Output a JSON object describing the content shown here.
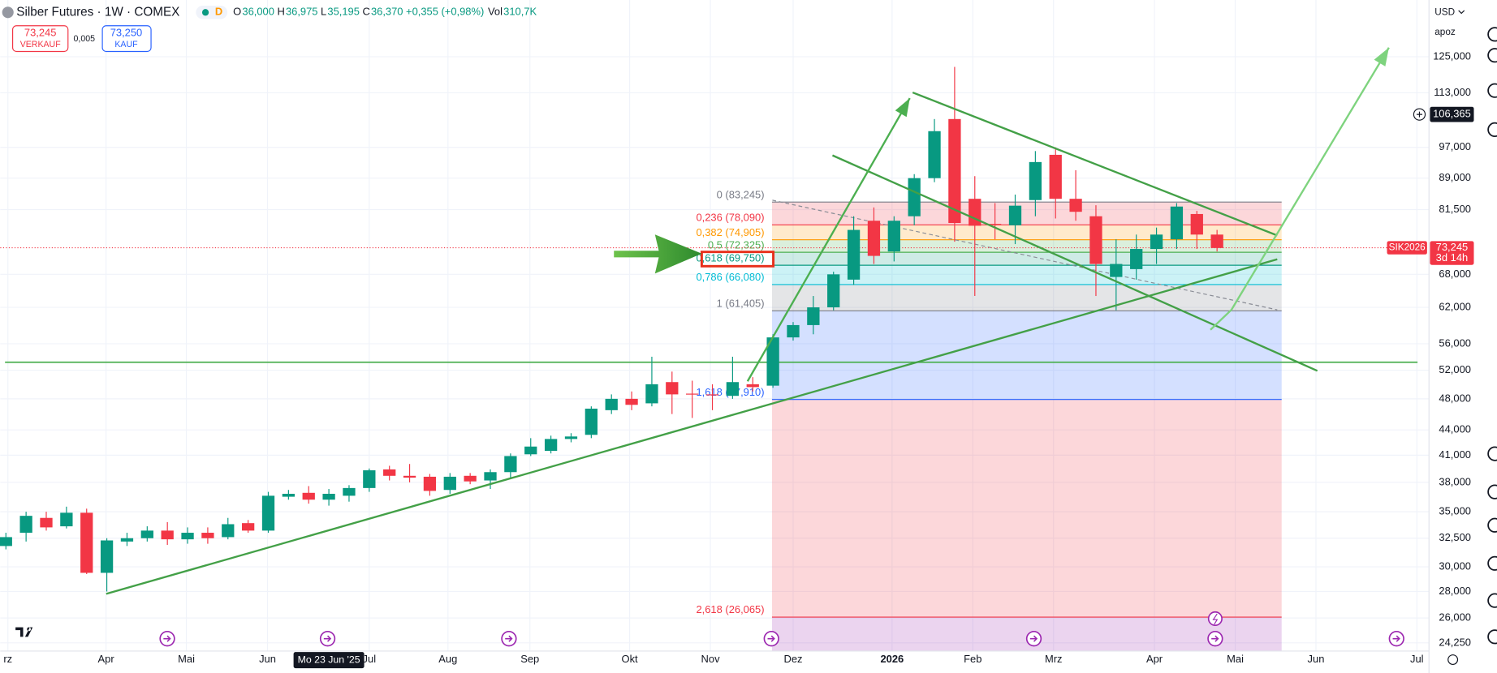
{
  "header": {
    "symbol": "Silber Futures · 1W · COMEX",
    "session": "D",
    "o_label": "O",
    "o": "36,000",
    "h_label": "H",
    "h": "36,975",
    "l_label": "L",
    "l": "35,195",
    "c_label": "C",
    "c": "36,370",
    "change": "+0,355 (+0,98%)",
    "vol_label": "Vol",
    "vol": "310,7K",
    "sell": "73,245",
    "sell_label": "VERKAUF",
    "spread": "0,005",
    "buy": "73,250",
    "buy_label": "KAUF",
    "currency": "USD",
    "scale_mode": "apoz"
  },
  "chart_data": {
    "type": "candlestick",
    "log_scale": true,
    "grid": true,
    "up_color": "#089981",
    "down_color": "#f23645",
    "open": [
      31.8,
      33.0,
      34.4,
      33.6,
      34.9,
      29.5,
      32.2,
      32.5,
      33.2,
      32.4,
      33.0,
      32.6,
      33.9,
      33.2,
      36.5,
      36.9,
      36.2,
      36.6,
      37.4,
      39.4,
      38.7,
      38.6,
      37.2,
      38.7,
      38.2,
      39.1,
      41.1,
      41.5,
      42.9,
      43.4,
      46.5,
      48.0,
      47.4,
      50.3,
      48.7,
      48.6,
      48.4,
      50.0,
      49.8,
      57.0,
      59.0,
      62.0,
      67.0,
      79.0,
      72.5,
      80.0,
      89.0,
      105.0,
      84.0,
      78.3,
      78.0,
      83.7,
      95.0,
      84.0,
      80.0,
      67.5,
      69.0,
      73.0,
      75.0,
      80.5,
      76.0
    ],
    "high": [
      33.0,
      35.0,
      35.0,
      35.5,
      35.3,
      32.5,
      33.0,
      33.6,
      34.0,
      33.5,
      33.5,
      34.4,
      34.2,
      37.0,
      37.2,
      37.6,
      37.3,
      37.7,
      39.5,
      39.8,
      40.0,
      38.9,
      39.0,
      39.0,
      39.4,
      41.2,
      43.0,
      43.3,
      43.6,
      47.0,
      48.6,
      49.0,
      54.0,
      51.8,
      50.5,
      50.0,
      54.0,
      51.0,
      57.5,
      59.5,
      64.0,
      68.5,
      80.0,
      82.0,
      80.0,
      90.0,
      105.0,
      121.5,
      89.5,
      83.0,
      85.0,
      96.0,
      97.0,
      91.0,
      82.5,
      75.0,
      76.0,
      77.5,
      83.0,
      81.2,
      77.0
    ],
    "low": [
      31.5,
      32.2,
      33.2,
      33.4,
      29.4,
      28.0,
      31.8,
      32.2,
      31.9,
      32.0,
      32.0,
      32.4,
      33.0,
      33.0,
      36.2,
      35.8,
      35.6,
      36.0,
      37.0,
      38.2,
      38.0,
      36.6,
      36.8,
      37.8,
      37.3,
      38.5,
      40.9,
      41.2,
      42.5,
      43.0,
      46.0,
      46.5,
      47.0,
      46.0,
      45.5,
      46.5,
      48.0,
      49.0,
      49.5,
      56.5,
      57.5,
      61.5,
      66.0,
      70.0,
      70.5,
      78.0,
      88.0,
      74.5,
      64.0,
      75.0,
      74.0,
      80.0,
      79.5,
      79.0,
      64.0,
      61.5,
      67.0,
      70.0,
      73.0,
      73.0,
      72.5
    ],
    "close": [
      32.6,
      34.6,
      33.5,
      34.9,
      29.5,
      32.3,
      32.5,
      33.2,
      32.4,
      33.0,
      32.5,
      33.8,
      33.2,
      36.6,
      36.8,
      36.2,
      36.8,
      37.4,
      39.3,
      38.7,
      38.5,
      37.1,
      38.6,
      38.1,
      39.1,
      40.9,
      42.0,
      42.9,
      43.2,
      46.7,
      48.0,
      47.2,
      50.0,
      48.6,
      48.6,
      48.5,
      50.3,
      49.6,
      57.0,
      59.0,
      62.0,
      68.0,
      77.0,
      71.6,
      79.0,
      89.0,
      101.5,
      78.5,
      77.9,
      78.1,
      82.4,
      93.1,
      84.0,
      81.0,
      70.0,
      70.0,
      73.0,
      76.0,
      82.2,
      76.0,
      73.2
    ],
    "ylim": [
      23.7,
      146.5
    ],
    "xlim": [
      -0.28,
      70.5
    ],
    "yticks": [
      {
        "value": 125,
        "label": "125,000"
      },
      {
        "value": 113,
        "label": "113,000"
      },
      {
        "value": 97,
        "label": "97,000"
      },
      {
        "value": 89,
        "label": "89,000"
      },
      {
        "value": 81.5,
        "label": "81,500"
      },
      {
        "value": 68,
        "label": "68,000"
      },
      {
        "value": 62,
        "label": "62,000"
      },
      {
        "value": 56,
        "label": "56,000"
      },
      {
        "value": 52,
        "label": "52,000"
      },
      {
        "value": 48,
        "label": "48,000"
      },
      {
        "value": 44,
        "label": "44,000"
      },
      {
        "value": 41,
        "label": "41,000"
      },
      {
        "value": 38,
        "label": "38,000"
      },
      {
        "value": 35,
        "label": "35,000"
      },
      {
        "value": 32.5,
        "label": "32,500"
      },
      {
        "value": 30,
        "label": "30,000"
      },
      {
        "value": 28,
        "label": "28,000"
      },
      {
        "value": 26,
        "label": "26,000"
      },
      {
        "value": 24.25,
        "label": "24,250"
      }
    ],
    "xticks": [
      {
        "value": 0.1,
        "label": "rz"
      },
      {
        "value": 4.96,
        "label": "Apr"
      },
      {
        "value": 8.94,
        "label": "Mai"
      },
      {
        "value": 12.96,
        "label": "Jun"
      },
      {
        "value": 18.0,
        "label": "Jul"
      },
      {
        "value": 21.9,
        "label": "Aug"
      },
      {
        "value": 25.96,
        "label": "Sep"
      },
      {
        "value": 30.9,
        "label": "Okt"
      },
      {
        "value": 34.9,
        "label": "Nov"
      },
      {
        "value": 39.0,
        "label": "Dez"
      },
      {
        "value": 43.9,
        "label": "2026"
      },
      {
        "value": 47.9,
        "label": "Feb"
      },
      {
        "value": 51.9,
        "label": "Mrz"
      },
      {
        "value": 56.9,
        "label": "Apr"
      },
      {
        "value": 60.9,
        "label": "Mai"
      },
      {
        "value": 64.9,
        "label": "Jun"
      },
      {
        "value": 69.9,
        "label": "Jul"
      }
    ],
    "fib": {
      "levels": [
        {
          "label": "0 (83,245)",
          "value": 83.245,
          "color": "#787b86"
        },
        {
          "label": "0,236 (78,090)",
          "value": 78.09,
          "color": "#f23645"
        },
        {
          "label": "0,382 (74,905)",
          "value": 74.905,
          "color": "#ff9800"
        },
        {
          "label": "0,5 (72,325)",
          "value": 72.325,
          "color": "#4caf50"
        },
        {
          "label": "0,618 (69,750)",
          "value": 69.75,
          "color": "#089981"
        },
        {
          "label": "0,786 (66,080)",
          "value": 66.08,
          "color": "#00bcd4"
        },
        {
          "label": "1 (61,405)",
          "value": 61.405,
          "color": "#787b86"
        },
        {
          "label": "1,618 (47,910)",
          "value": 47.91,
          "color": "#2962ff"
        },
        {
          "label": "2,618 (26,065)",
          "value": 26.065,
          "color": "#f23645"
        }
      ]
    },
    "last": {
      "value": 73.245,
      "label": "73,245",
      "countdown": "3d 14h",
      "symbol": "SIK2026"
    },
    "crosshair": {
      "value": 106.365,
      "label": "106,365",
      "time_label": "Mo 23 Jun '25"
    }
  }
}
